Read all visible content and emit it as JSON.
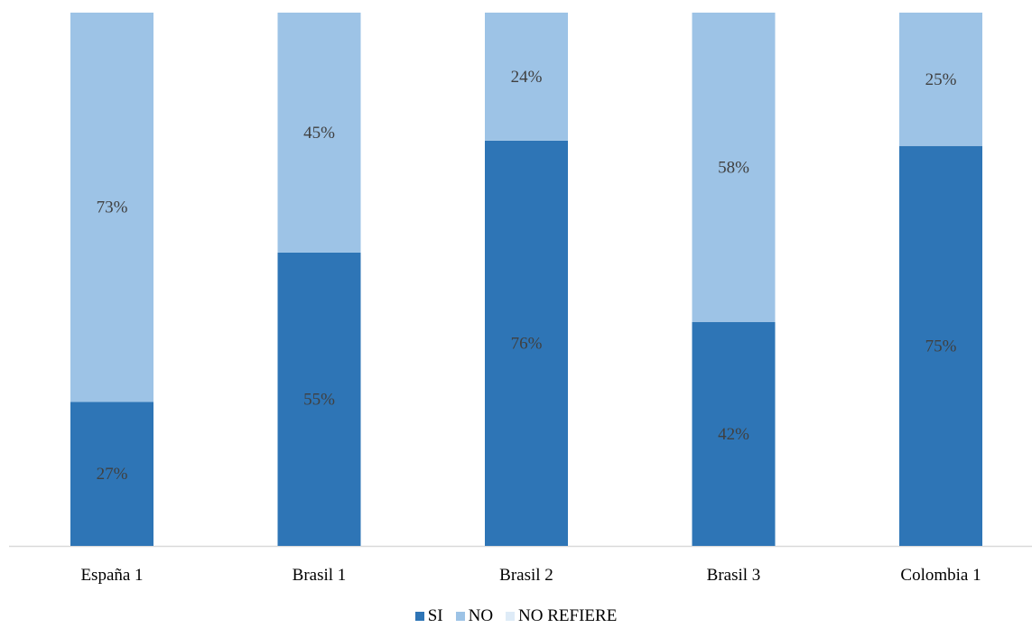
{
  "chart_data": {
    "type": "bar",
    "stacked": true,
    "categories": [
      "España 1",
      "Brasil 1",
      "Brasil 2",
      "Brasil 3",
      "Colombia 1"
    ],
    "series": [
      {
        "name": "SI",
        "values": [
          27,
          55,
          76,
          42,
          75
        ],
        "color": "#2E75B6"
      },
      {
        "name": "NO",
        "values": [
          73,
          45,
          24,
          58,
          25
        ],
        "color": "#9DC3E6"
      },
      {
        "name": "NO REFIERE",
        "values": [
          0,
          0,
          0,
          0,
          0
        ],
        "color": "#DEEBF7"
      }
    ],
    "value_format": "percent",
    "ylim": [
      0,
      100
    ],
    "grid": false,
    "legend_position": "bottom"
  }
}
